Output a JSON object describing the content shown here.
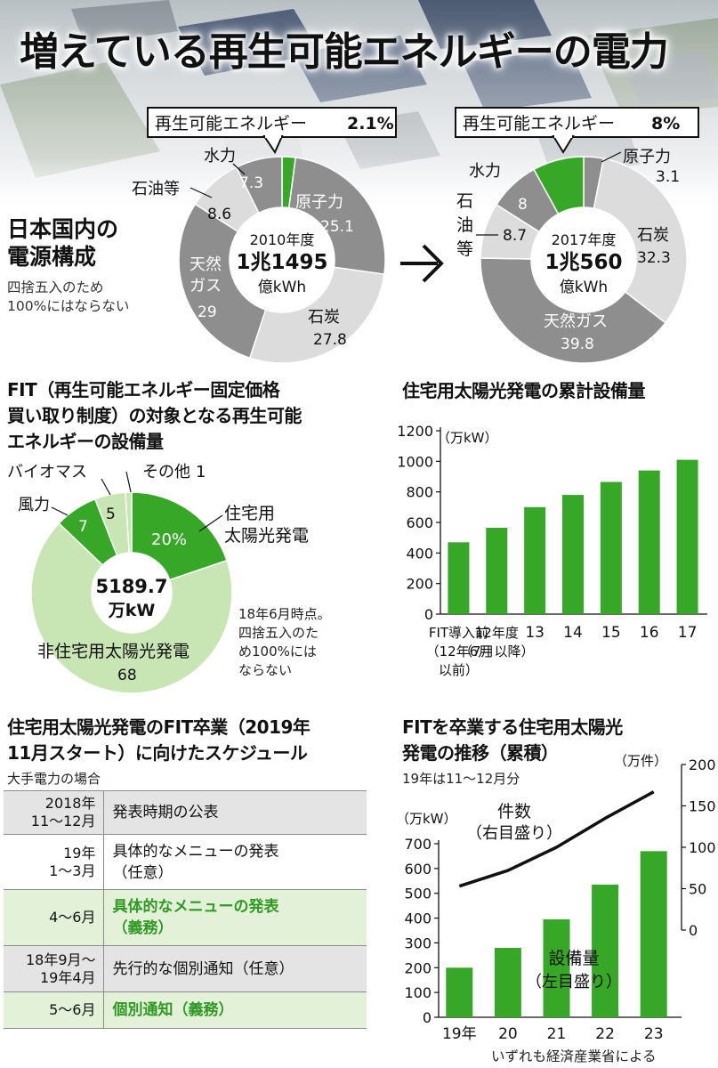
{
  "title": "増えている再生可能エネルギーの電力",
  "colors": {
    "green": "#37a728",
    "light_green": "#c8e5b4",
    "dark_gray": "#8e8e8e",
    "light_gray": "#dcdcdc",
    "mid_gray": "#b7b7b7"
  },
  "domestic": {
    "title_line1": "日本国内の",
    "title_line2": "電源構成",
    "note_line1": "四捨五入のため",
    "note_line2": "100%にはならない"
  },
  "fit_capacity": {
    "title_line1": "FIT（再生可能エネルギー固定価格",
    "title_line2": "買い取り制度）の対象となる再生可能",
    "title_line3": "エネルギーの設備量",
    "note_line1": "18年6月時点。",
    "note_line2": "四捨五入のた",
    "note_line3": "め100%には",
    "note_line4": "ならない"
  },
  "schedule": {
    "title_line1": "住宅用太陽光発電のFIT卒業（2019年",
    "title_line2": "11月スタート）に向けたスケジュール",
    "subtitle": "大手電力の場合",
    "rows": [
      {
        "when": "2018年\n11～12月",
        "what": "発表時期の公表",
        "style": "gray"
      },
      {
        "when": "19年\n1～3月",
        "what": "具体的なメニューの発表\n（任意）",
        "style": "white"
      },
      {
        "when": "4～6月",
        "what": "具体的なメニューの発表\n（義務）",
        "style": "green"
      },
      {
        "when": "18年9月～\n19年4月",
        "what": "先行的な個別通知（任意）",
        "style": "gray"
      },
      {
        "when": "5～6月",
        "what": "個別通知（義務）",
        "style": "green"
      }
    ]
  },
  "credit": "いずれも経済産業省による",
  "chart_data": [
    {
      "type": "pie",
      "donut": true,
      "center_label": [
        "2010年度",
        "1兆1495",
        "億kWh"
      ],
      "categories": [
        "再生可能エネルギー",
        "原子力",
        "石炭",
        "天然ガス",
        "石油等",
        "水力"
      ],
      "values": [
        2.1,
        25.1,
        27.8,
        29.0,
        8.6,
        7.3
      ],
      "unit": "%"
    },
    {
      "type": "pie",
      "donut": true,
      "center_label": [
        "2017年度",
        "1兆560",
        "億kWh"
      ],
      "categories": [
        "原子力",
        "石炭",
        "天然ガス",
        "石油等",
        "水力",
        "再生可能エネルギー"
      ],
      "values": [
        3.1,
        32.3,
        39.8,
        8.7,
        8.0,
        8.0
      ],
      "unit": "%"
    },
    {
      "type": "pie",
      "donut": true,
      "center_label": [
        "5189.7",
        "万kW"
      ],
      "categories": [
        "住宅用太陽光発電",
        "非住宅用太陽光発電",
        "風力",
        "バイオマス",
        "その他"
      ],
      "values": [
        20,
        68,
        7,
        5,
        1
      ],
      "unit": "%"
    },
    {
      "type": "bar",
      "title": "住宅用太陽光発電の累計設備量",
      "unit_label": "（万kW）",
      "categories": [
        "FIT導入前（12年6月以前）",
        "12年度（7月以降）",
        "13",
        "14",
        "15",
        "16",
        "17"
      ],
      "category_labels": [
        [
          "FIT導入前",
          "（12年6月",
          "以前）"
        ],
        [
          "12年度",
          "（7月以降）"
        ],
        [
          "13"
        ],
        [
          "14"
        ],
        [
          "15"
        ],
        [
          "16"
        ],
        [
          "17"
        ]
      ],
      "values": [
        470,
        565,
        700,
        780,
        865,
        940,
        1010
      ],
      "ylim": [
        0,
        1200
      ],
      "yticks": [
        0,
        200,
        400,
        600,
        800,
        1000,
        1200
      ]
    },
    {
      "type": "bar+line",
      "title_line1": "FITを卒業する住宅用太陽光",
      "title_line2": "発電の推移（累積）",
      "subtitle": "19年は11～12月分",
      "categories": [
        "19年",
        "20",
        "21",
        "22",
        "23"
      ],
      "series": [
        {
          "name": "設備量",
          "axis_note": "（左目盛り）",
          "unit": "（万kW）",
          "type": "bar",
          "values": [
            200,
            280,
            395,
            535,
            670
          ]
        },
        {
          "name": "件数",
          "axis_note": "（右目盛り）",
          "unit": "（万件）",
          "type": "line",
          "values": [
            53,
            72,
            100,
            135,
            167
          ]
        }
      ],
      "ylim_left": [
        0,
        700
      ],
      "yticks_left": [
        0,
        100,
        200,
        300,
        400,
        500,
        600,
        700
      ],
      "ylim_right": [
        0,
        200
      ],
      "yticks_right": [
        0,
        50,
        100,
        150,
        200
      ]
    }
  ]
}
